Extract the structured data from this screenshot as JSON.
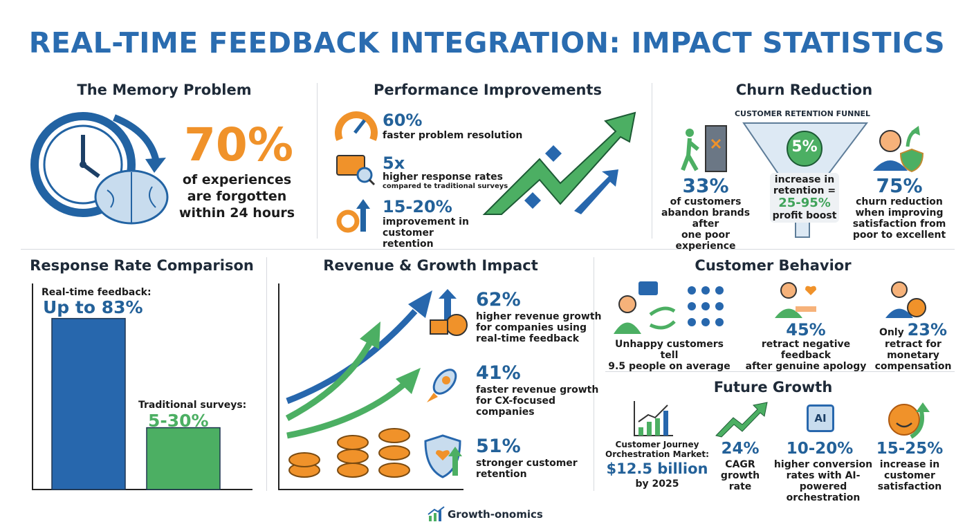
{
  "title": "REAL-TIME FEEDBACK INTEGRATION: IMPACT STATISTICS",
  "memory": {
    "heading": "The Memory Problem",
    "stat": "70%",
    "text": [
      "of experiences",
      "are forgotten",
      "within 24 hours"
    ]
  },
  "performance": {
    "heading": "Performance Improvements",
    "items": [
      {
        "stat": "60%",
        "text": "faster problem resolution",
        "icon": "speedometer-icon"
      },
      {
        "stat": "5x",
        "text": "higher response rates",
        "sub": "compared te traditional surveys",
        "icon": "chat-search-icon"
      },
      {
        "stat": "15-20%",
        "text": "improvement in customer retention",
        "icon": "gear-arrow-icon"
      }
    ]
  },
  "churn": {
    "heading": "Churn Reduction",
    "funnel_label": "CUSTOMER RETENTION FUNNEL",
    "left": {
      "stat": "33%",
      "text": [
        "of customers",
        "abandon brands after",
        "one poor experience"
      ]
    },
    "center": {
      "stat": "5%",
      "text1": "increase in",
      "text2": "retention =",
      "stat2": "25-95%",
      "text3": "profit boost"
    },
    "right": {
      "stat": "75%",
      "text": [
        "churn reduction",
        "when improving",
        "satisfaction from",
        "poor to excellent"
      ]
    }
  },
  "response": {
    "heading": "Response Rate Comparison"
  },
  "chart_data": {
    "type": "bar",
    "categories": [
      "Real-time feedback:",
      "Traditional surveys:"
    ],
    "value_labels": [
      "Up to 83%",
      "5-30%"
    ],
    "values": [
      83,
      30
    ],
    "ylim": [
      0,
      100
    ],
    "colors": [
      "#2767ad",
      "#4caf63"
    ],
    "grid": false
  },
  "revenue": {
    "heading": "Revenue & Growth Impact",
    "items": [
      {
        "stat": "62%",
        "text": [
          "higher revenue growth",
          "for companies using",
          "real-time feedback"
        ]
      },
      {
        "stat": "41%",
        "text": [
          "faster revenue growth",
          "for CX-focused",
          "companies"
        ]
      },
      {
        "stat": "51%",
        "text": [
          "stronger customer",
          "retention"
        ]
      }
    ]
  },
  "behavior": {
    "heading": "Customer Behavior",
    "items": [
      {
        "text": [
          "Unhappy customers tell",
          "9.5 people on average"
        ]
      },
      {
        "stat": "45%",
        "text": [
          "retract negative feedback",
          "after genuine apology"
        ]
      },
      {
        "prefix": "Only ",
        "stat": "23%",
        "text": [
          "retract for monetary",
          "compensation"
        ]
      }
    ]
  },
  "future": {
    "heading": "Future Growth",
    "items": [
      {
        "pre": [
          "Customer Journey",
          "Orchestration Market:"
        ],
        "stat": "$12.5 billion",
        "text": [
          "by 2025"
        ]
      },
      {
        "stat": "24%",
        "text": [
          "CAGR growth",
          "rate"
        ]
      },
      {
        "stat": "10-20%",
        "text": [
          "higher conversion",
          "rates with AI-powered",
          "orchestration"
        ],
        "icon_text": "AI"
      },
      {
        "stat": "15-25%",
        "text": [
          "increase in",
          "customer",
          "satisfaction"
        ]
      }
    ]
  },
  "footer": {
    "brand": "Growth-onomics"
  }
}
